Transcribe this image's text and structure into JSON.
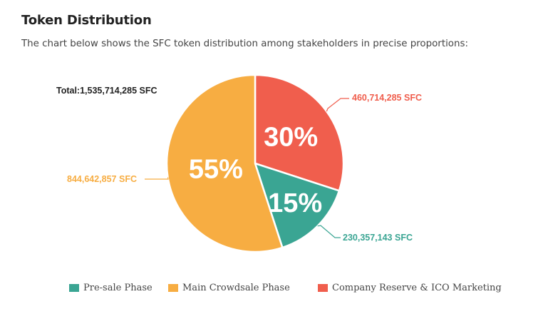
{
  "header": {
    "title": "Token Distribution",
    "subtitle": "The chart below shows the SFC token distribution among stakeholders in precise proportions:"
  },
  "chart_data": {
    "type": "pie",
    "title": "Token Distribution",
    "total_label": "Total:1,535,714,285 SFC",
    "slices": [
      {
        "name": "Company Reserve & ICO Marketing",
        "percent": 30,
        "percent_label": "30%",
        "amount_label": "460,714,285 SFC",
        "color": "#f05e4d"
      },
      {
        "name": "Pre-sale Phase",
        "percent": 15,
        "percent_label": "15%",
        "amount_label": "230,357,143 SFC",
        "color": "#3aa593"
      },
      {
        "name": "Main Crowdsale Phase",
        "percent": 55,
        "percent_label": "55%",
        "amount_label": "844,642,857 SFC",
        "color": "#f7ad42"
      }
    ],
    "legend": [
      {
        "label": "Pre-sale Phase",
        "color": "#3aa593"
      },
      {
        "label": "Main Crowdsale Phase",
        "color": "#f7ad42"
      },
      {
        "label": "Company Reserve & ICO Marketing",
        "color": "#f05e4d"
      }
    ]
  }
}
